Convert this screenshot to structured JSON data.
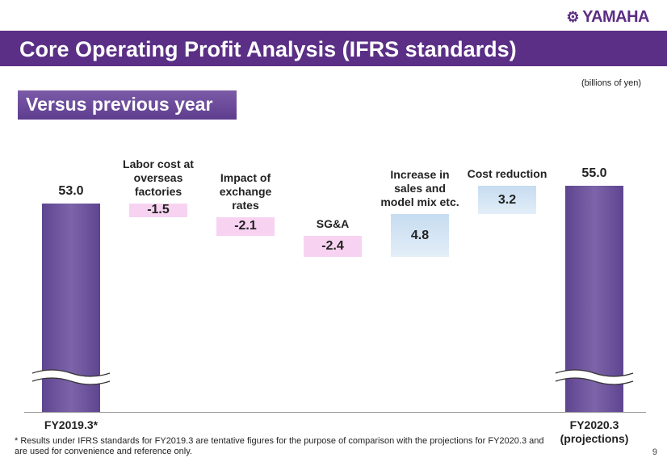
{
  "header": {
    "logo": "YAMAHA",
    "title": "Core Operating Profit Analysis (IFRS standards)",
    "subtitle": "Versus previous year",
    "units": "(billions of yen)"
  },
  "chart_data": {
    "type": "waterfall",
    "categories": [
      "FY2019.3*",
      "Labor cost at overseas factories",
      "Impact of exchange rates",
      "SG&A",
      "Increase in sales and model mix etc.",
      "Cost reduction",
      "FY2020.3 (projections)"
    ],
    "values": [
      53,
      -1.5,
      -2.1,
      -2.4,
      4.8,
      3.2,
      55
    ],
    "value_labels": [
      "53.0",
      "-1.5",
      "-2.1",
      "-2.4",
      "4.8",
      "3.2",
      "55.0"
    ],
    "total_color": "#7d64a9",
    "decrease_color": "#f7d3f1",
    "increase_color": "#c6dcf0",
    "broken_axis": true
  },
  "footer": {
    "note": "* Results under IFRS standards for FY2019.3 are tentative figures for the purpose of comparison with the projections for FY2020.3 and are used for convenience and reference only.",
    "page": "9"
  }
}
